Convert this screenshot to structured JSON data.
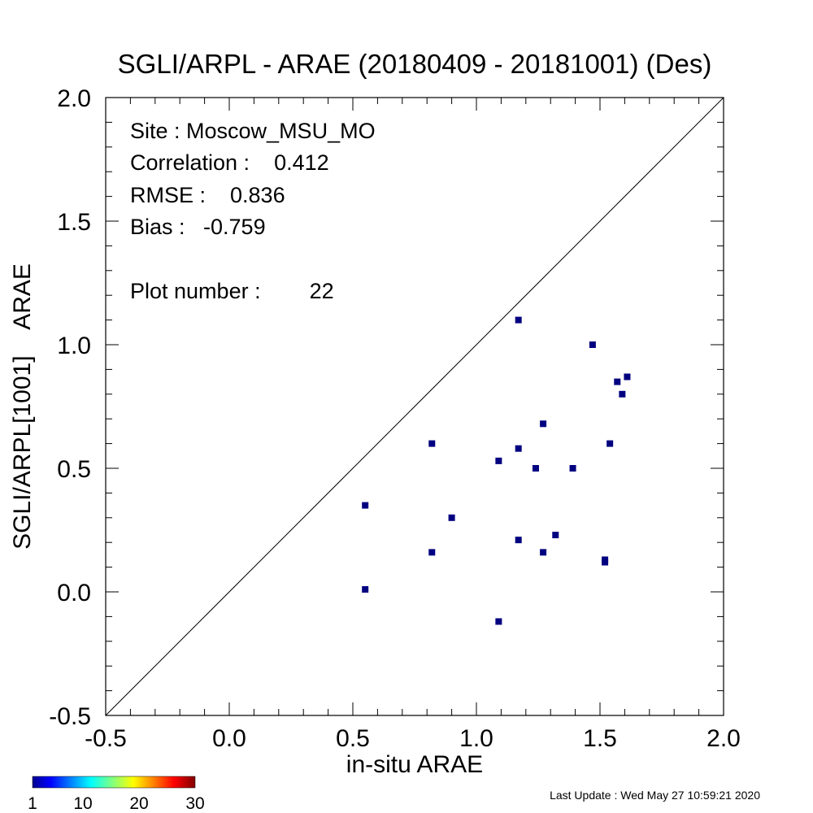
{
  "chart_data": {
    "type": "scatter",
    "title": "SGLI/ARPL - ARAE (20180409 - 20181001) (Des)",
    "xlabel": "in-situ ARAE",
    "ylabel": "SGLI/ARPL[1001]    ARAE",
    "xlim": [
      -0.5,
      2.0
    ],
    "ylim": [
      -0.5,
      2.0
    ],
    "xticks": [
      "-0.5",
      "0.0",
      "0.5",
      "1.0",
      "1.5",
      "2.0"
    ],
    "yticks": [
      "-0.5",
      "0.0",
      "0.5",
      "1.0",
      "1.5",
      "2.0"
    ],
    "one_to_one_line": true,
    "grid": false,
    "marker_color": "#000080",
    "points": [
      {
        "x": 0.55,
        "y": 0.35
      },
      {
        "x": 0.55,
        "y": 0.01
      },
      {
        "x": 0.82,
        "y": 0.6
      },
      {
        "x": 0.82,
        "y": 0.16
      },
      {
        "x": 0.9,
        "y": 0.3
      },
      {
        "x": 1.09,
        "y": 0.53
      },
      {
        "x": 1.09,
        "y": -0.12
      },
      {
        "x": 1.17,
        "y": 1.1
      },
      {
        "x": 1.17,
        "y": 0.58
      },
      {
        "x": 1.17,
        "y": 0.21
      },
      {
        "x": 1.24,
        "y": 0.5
      },
      {
        "x": 1.27,
        "y": 0.68
      },
      {
        "x": 1.27,
        "y": 0.16
      },
      {
        "x": 1.32,
        "y": 0.23
      },
      {
        "x": 1.39,
        "y": 0.5
      },
      {
        "x": 1.47,
        "y": 1.0
      },
      {
        "x": 1.52,
        "y": 0.13
      },
      {
        "x": 1.52,
        "y": 0.12
      },
      {
        "x": 1.54,
        "y": 0.6
      },
      {
        "x": 1.57,
        "y": 0.85
      },
      {
        "x": 1.59,
        "y": 0.8
      },
      {
        "x": 1.61,
        "y": 0.87
      }
    ]
  },
  "stats": {
    "site": "Site : Moscow_MSU_MO",
    "correlation": "Correlation :    0.412",
    "rmse": "RMSE :    0.836",
    "bias": "Bias :   -0.759",
    "plot_number": "Plot number :        22"
  },
  "colorbar": {
    "labels": [
      "1",
      "10",
      "20",
      "30"
    ],
    "min": 1,
    "max": 30
  },
  "footer": {
    "last_update": "Last Update : Wed May 27 10:59:21 2020"
  }
}
